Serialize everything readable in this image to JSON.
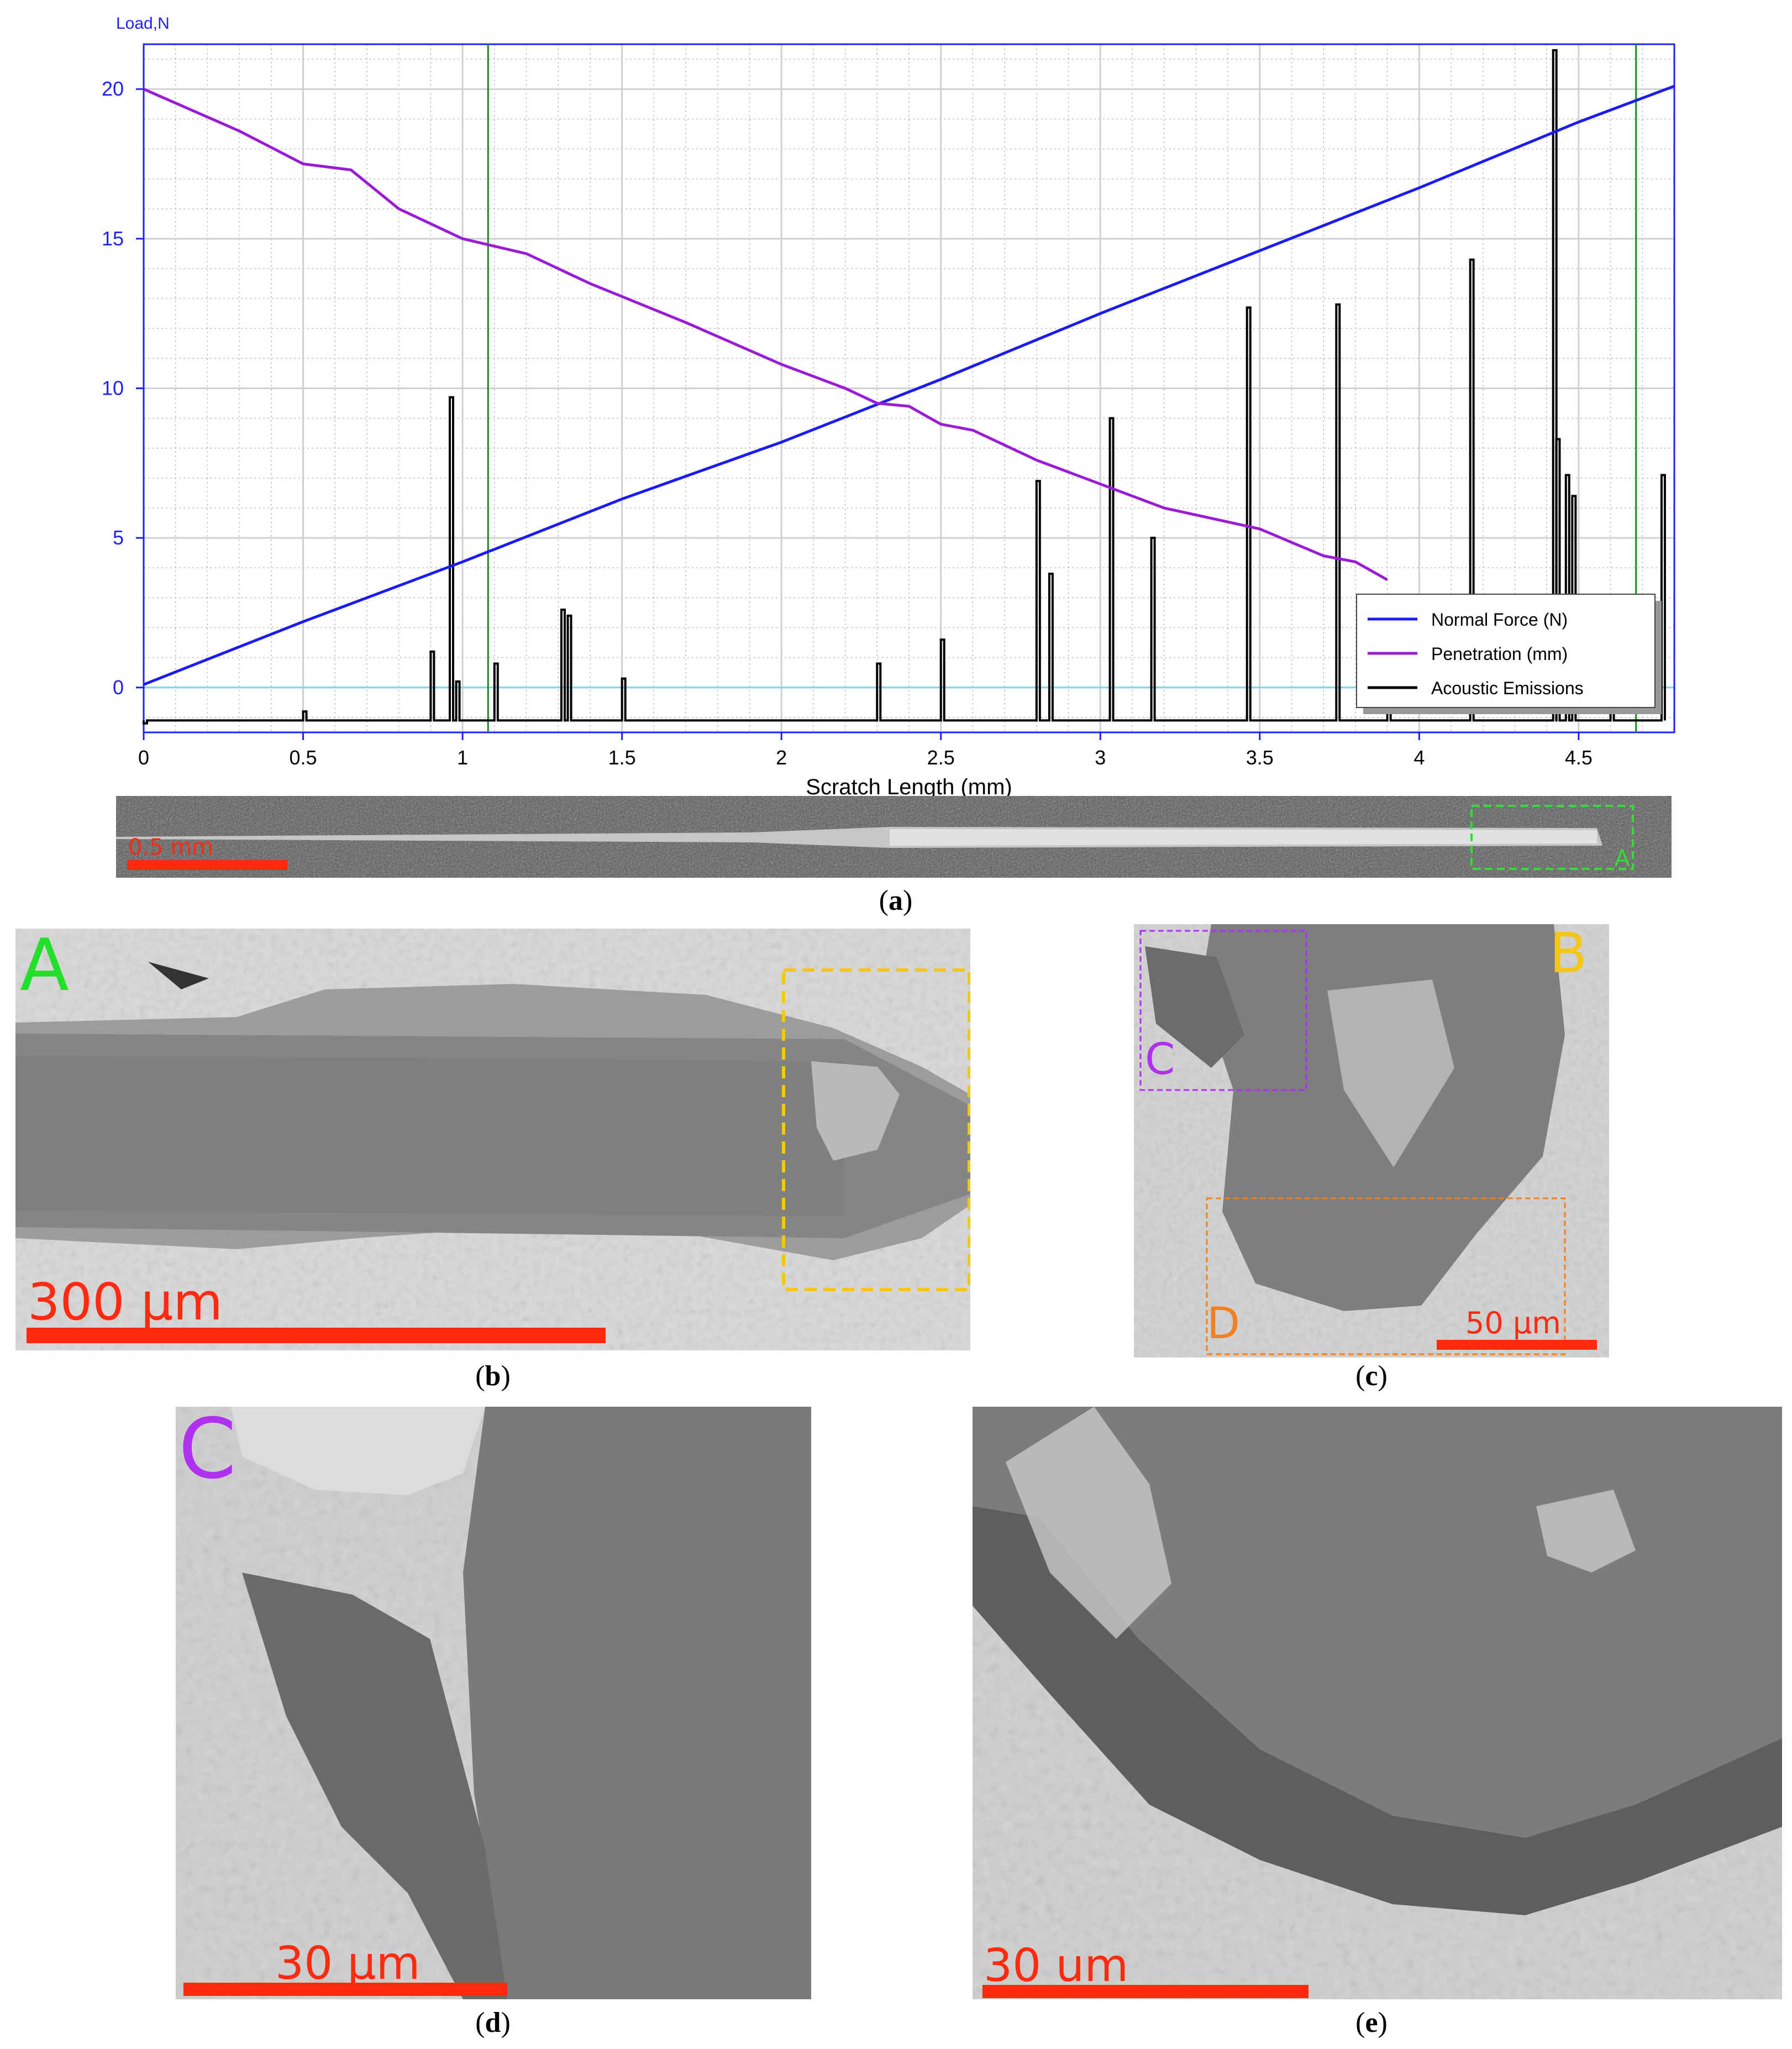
{
  "figure": {
    "panel_a_caption": "a",
    "panel_b_caption": "b",
    "panel_c_caption": "c",
    "panel_d_caption": "d",
    "panel_e_caption": "e"
  },
  "chart_data": {
    "type": "line",
    "y_axis_title": "Load,N",
    "xlabel": "Scratch Length (mm)",
    "xlim": [
      0,
      4.8
    ],
    "ylim": [
      -1.5,
      21.5
    ],
    "x_ticks": [
      "0",
      "0.5",
      "1",
      "1.5",
      "2",
      "2.5",
      "3",
      "3.5",
      "4",
      "4.5"
    ],
    "x_tick_values": [
      0,
      0.5,
      1,
      1.5,
      2,
      2.5,
      3,
      3.5,
      4,
      4.5
    ],
    "y_ticks": [
      "0",
      "5",
      "10",
      "15",
      "20"
    ],
    "y_tick_values": [
      0,
      5,
      10,
      15,
      20
    ],
    "grid": true,
    "legend_position": "bottom-right",
    "vertical_markers_x": [
      1.08,
      4.68
    ],
    "series": [
      {
        "name": "Normal Force (N)",
        "color": "#1a1aff",
        "x": [
          0,
          0.5,
          1,
          1.5,
          2,
          2.5,
          3,
          3.5,
          4,
          4.5,
          4.8
        ],
        "y": [
          0.1,
          2.2,
          4.2,
          6.3,
          8.2,
          10.3,
          12.5,
          14.6,
          16.7,
          18.9,
          20.1
        ]
      },
      {
        "name": "Penetration (mm)",
        "color": "#9a1ad6",
        "x": [
          0,
          0.3,
          0.5,
          0.65,
          0.8,
          1,
          1.2,
          1.4,
          1.7,
          2,
          2.2,
          2.3,
          2.4,
          2.5,
          2.6,
          2.8,
          3,
          3.2,
          3.5,
          3.7,
          3.8,
          3.9
        ],
        "y": [
          20,
          18.6,
          17.5,
          17.3,
          16,
          15,
          14.5,
          13.5,
          12.2,
          10.8,
          10,
          9.5,
          9.4,
          8.8,
          8.6,
          7.6,
          6.8,
          6,
          5.3,
          4.4,
          4.2,
          3.6
        ]
      },
      {
        "name": "Acoustic Emissions",
        "color": "#000000",
        "x": [
          0,
          0.3,
          0.5,
          0.9,
          0.96,
          0.98,
          1.1,
          1.31,
          1.33,
          1.5,
          2.3,
          2.5,
          2.8,
          2.84,
          3.03,
          3.16,
          3.46,
          3.74,
          3.9,
          4.16,
          4.42,
          4.43,
          4.46,
          4.48,
          4.6,
          4.76
        ],
        "y": [
          -1.2,
          -1.1,
          -0.8,
          1.2,
          9.7,
          0.2,
          0.8,
          2.6,
          2.4,
          0.3,
          0.8,
          1.6,
          6.9,
          3.8,
          9.0,
          5.0,
          12.7,
          12.8,
          2.0,
          14.3,
          21.3,
          8.3,
          7.1,
          6.4,
          1.5,
          7.1
        ]
      }
    ]
  },
  "scale_bars": {
    "a": "0.5 mm",
    "b": "300 μm",
    "c": "50 μm",
    "d": "30 μm",
    "e": "30 um"
  },
  "region_labels": {
    "b_label": "A",
    "c_label": "B",
    "c_box_c": "C",
    "c_box_d": "D",
    "d_label": "C",
    "a_box": "A"
  },
  "colors": {
    "scale_bar": "#ff2a10",
    "label_green": "#22e02a",
    "label_yellow": "#f5c518",
    "label_purple": "#b030f0",
    "label_orange": "#f08020",
    "grid": "#d8d8d8",
    "axis": "#2020ff"
  }
}
